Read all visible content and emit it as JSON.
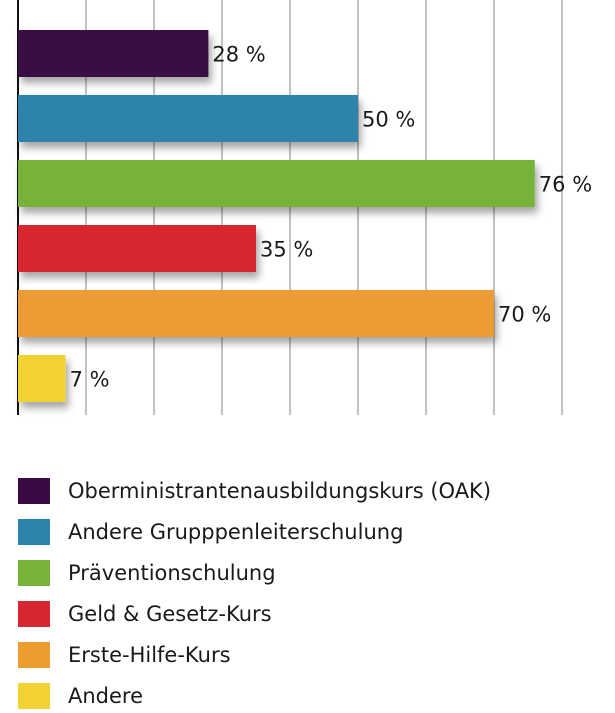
{
  "chart_data": {
    "type": "barh",
    "categories": [
      "Oberministrantenausbildungskurs (OAK)",
      "Andere Grupppenleiterschulung",
      "Präventionschulung",
      "Geld & Gesetz-Kurs",
      "Erste-Hilfe-Kurs",
      "Andere"
    ],
    "values": [
      28,
      50,
      76,
      35,
      70,
      7
    ],
    "value_labels": [
      "28 %",
      "50 %",
      "76 %",
      "35 %",
      "70 %",
      "7 %"
    ],
    "colors": [
      "#3b0a45",
      "#2e83a8",
      "#77b23b",
      "#d7262f",
      "#eb9c31",
      "#f2d232"
    ],
    "xlim": [
      0,
      80
    ],
    "xticks": [
      0,
      10,
      20,
      30,
      40,
      50,
      60,
      70,
      80
    ],
    "grid": true,
    "legend": "bottom"
  }
}
